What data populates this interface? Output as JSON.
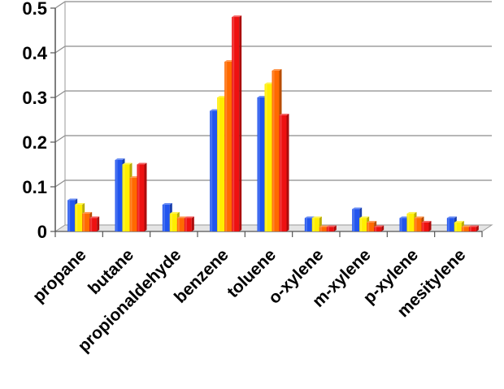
{
  "chart_data": {
    "type": "bar",
    "categories": [
      "propane",
      "butane",
      "propionaldehyde",
      "benzene",
      "toluene",
      "o-xylene",
      "m-xylene",
      "p-xylene",
      "mesitylene"
    ],
    "series": [
      {
        "color": "#2255ee",
        "values": [
          0.07,
          0.16,
          0.06,
          0.27,
          0.3,
          0.03,
          0.05,
          0.03,
          0.03
        ]
      },
      {
        "color": "#ffee00",
        "values": [
          0.06,
          0.15,
          0.04,
          0.3,
          0.33,
          0.03,
          0.03,
          0.04,
          0.02
        ]
      },
      {
        "color": "#ff6a00",
        "values": [
          0.04,
          0.12,
          0.03,
          0.38,
          0.36,
          0.01,
          0.02,
          0.03,
          0.01
        ]
      },
      {
        "color": "#ee1111",
        "values": [
          0.03,
          0.15,
          0.03,
          0.48,
          0.26,
          0.01,
          0.01,
          0.02,
          0.01
        ]
      }
    ],
    "yticks": [
      "0",
      "0.1",
      "0.2",
      "0.3",
      "0.4",
      "0.5"
    ],
    "ylim": [
      0,
      0.5
    ],
    "grid": true,
    "legend": "none"
  }
}
